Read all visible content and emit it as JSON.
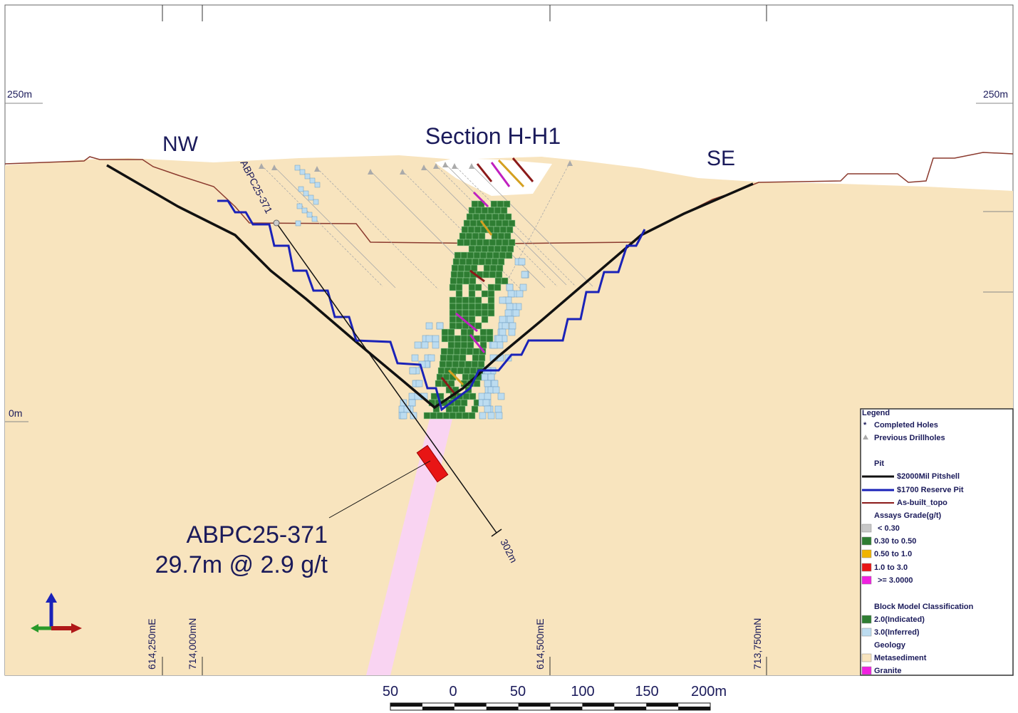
{
  "section": {
    "title": "Section H-H1",
    "left_direction": "NW",
    "right_direction": "SE"
  },
  "elevation_labels": {
    "left_top": "250m",
    "right_top": "250m",
    "left_zero": "0m"
  },
  "drillhole": {
    "name": "ABPC25-371",
    "depth": "302m"
  },
  "intercept": {
    "hole": "ABPC25-371",
    "result": "29.7m @ 2.9 g/t"
  },
  "grid_labels": [
    "614,250mE",
    "714,000mN",
    "614,500mE",
    "713,750mN"
  ],
  "scale_bar": [
    "50",
    "0",
    "50",
    "100",
    "150",
    "200m"
  ],
  "legend": {
    "title": "Legend",
    "items": [
      "Completed Holes",
      "Previous Drillholes",
      "Pit",
      "$2000Mil Pitshell",
      "$1700 Reserve Pit",
      "As-built_topo",
      "Assays Grade(g/t)",
      "< 0.30",
      "0.30 to 0.50",
      "0.50 to 1.0",
      "1.0 to 3.0",
      ">= 3.0000",
      "Block Model Classification",
      "2.0(Indicated)",
      "3.0(Inferred)",
      "Geology",
      "Metasediment",
      "Granite"
    ]
  }
}
